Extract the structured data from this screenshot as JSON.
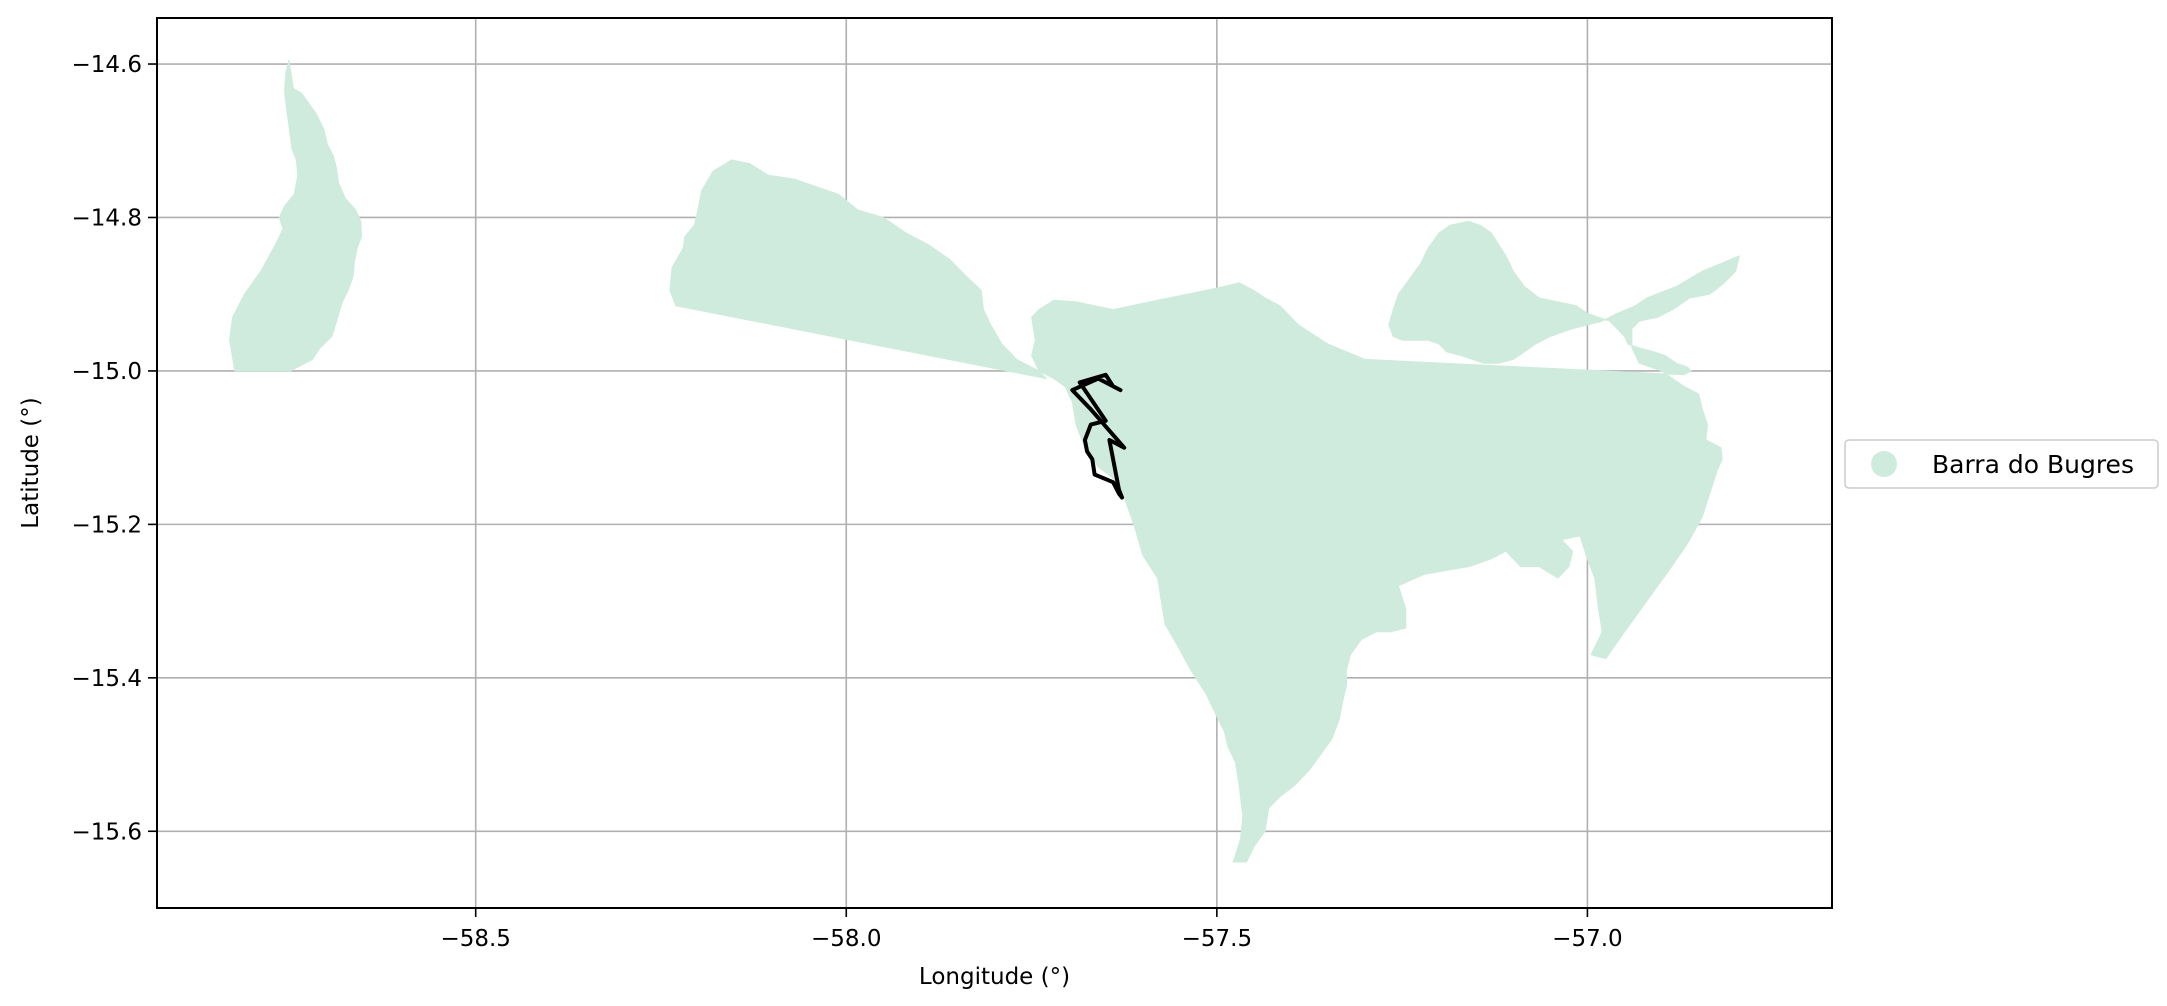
{
  "colors": {
    "region_fill": "#cfebdd",
    "outline_stroke": "#000000",
    "grid": "#b0b0b0",
    "axes": "#000000",
    "legend_border": "#cccccc"
  },
  "map": {
    "xlabel": "Longitude (°)",
    "ylabel": "Latitude (°)",
    "xlim": [
      -58.93,
      -56.67
    ],
    "ylim": [
      -15.7,
      -14.54
    ],
    "x_ticks": [
      -58.5,
      -58.0,
      -57.5,
      -57.0
    ],
    "x_tick_labels": [
      "−58.5",
      "−58.0",
      "−57.5",
      "−57.0"
    ],
    "y_ticks": [
      -14.6,
      -14.8,
      -15.0,
      -15.2,
      -15.4,
      -15.6
    ],
    "y_tick_labels": [
      "−14.6",
      "−14.8",
      "−15.0",
      "−15.2",
      "−15.4",
      "−15.6"
    ],
    "grid": true,
    "legend": {
      "placement": "outside-right",
      "entries": [
        {
          "label": "Barra do Bugres",
          "marker": "circle",
          "color": "#cfebdd"
        }
      ]
    },
    "layers": [
      {
        "name": "Barra do Bugres",
        "type": "polygon",
        "style": "filled",
        "parts": [
          [
            [
              -58.825,
              -15.0
            ],
            [
              -58.832,
              -14.96
            ],
            [
              -58.828,
              -14.93
            ],
            [
              -58.812,
              -14.9
            ],
            [
              -58.79,
              -14.87
            ],
            [
              -58.77,
              -14.835
            ],
            [
              -58.76,
              -14.815
            ],
            [
              -58.765,
              -14.8
            ],
            [
              -58.758,
              -14.785
            ],
            [
              -58.745,
              -14.77
            ],
            [
              -58.74,
              -14.745
            ],
            [
              -58.742,
              -14.725
            ],
            [
              -58.748,
              -14.71
            ],
            [
              -58.752,
              -14.68
            ],
            [
              -58.755,
              -14.66
            ],
            [
              -58.758,
              -14.635
            ],
            [
              -58.756,
              -14.61
            ],
            [
              -58.752,
              -14.595
            ],
            [
              -58.746,
              -14.632
            ],
            [
              -58.735,
              -14.638
            ],
            [
              -58.715,
              -14.665
            ],
            [
              -58.705,
              -14.685
            ],
            [
              -58.7,
              -14.705
            ],
            [
              -58.692,
              -14.72
            ],
            [
              -58.688,
              -14.735
            ],
            [
              -58.685,
              -14.755
            ],
            [
              -58.676,
              -14.775
            ],
            [
              -58.662,
              -14.79
            ],
            [
              -58.655,
              -14.805
            ],
            [
              -58.654,
              -14.825
            ],
            [
              -58.66,
              -14.84
            ],
            [
              -58.664,
              -14.86
            ],
            [
              -58.665,
              -14.875
            ],
            [
              -58.672,
              -14.895
            ],
            [
              -58.68,
              -14.91
            ],
            [
              -58.686,
              -14.93
            ],
            [
              -58.694,
              -14.955
            ],
            [
              -58.71,
              -14.97
            ],
            [
              -58.72,
              -14.985
            ],
            [
              -58.74,
              -14.995
            ],
            [
              -58.75,
              -15.0
            ]
          ],
          [
            [
              -58.23,
              -14.915
            ],
            [
              -58.238,
              -14.895
            ],
            [
              -58.235,
              -14.865
            ],
            [
              -58.22,
              -14.84
            ],
            [
              -58.218,
              -14.825
            ],
            [
              -58.205,
              -14.81
            ],
            [
              -58.2,
              -14.79
            ],
            [
              -58.195,
              -14.765
            ],
            [
              -58.18,
              -14.74
            ],
            [
              -58.155,
              -14.725
            ],
            [
              -58.13,
              -14.73
            ],
            [
              -58.105,
              -14.745
            ],
            [
              -58.07,
              -14.75
            ],
            [
              -58.04,
              -14.76
            ],
            [
              -58.01,
              -14.77
            ],
            [
              -57.985,
              -14.79
            ],
            [
              -57.95,
              -14.8
            ],
            [
              -57.92,
              -14.82
            ],
            [
              -57.89,
              -14.835
            ],
            [
              -57.86,
              -14.855
            ],
            [
              -57.84,
              -14.875
            ],
            [
              -57.818,
              -14.895
            ],
            [
              -57.815,
              -14.92
            ],
            [
              -57.805,
              -14.94
            ],
            [
              -57.79,
              -14.965
            ],
            [
              -57.77,
              -14.985
            ],
            [
              -57.74,
              -15.0
            ],
            [
              -57.72,
              -15.01
            ],
            [
              -57.705,
              -15.02
            ],
            [
              -57.695,
              -15.04
            ],
            [
              -57.69,
              -15.07
            ],
            [
              -57.678,
              -15.1
            ],
            [
              -57.66,
              -15.125
            ],
            [
              -57.64,
              -15.14
            ],
            [
              -57.625,
              -15.165
            ],
            [
              -57.612,
              -15.2
            ],
            [
              -57.6,
              -15.24
            ],
            [
              -57.58,
              -15.27
            ],
            [
              -57.575,
              -15.3
            ],
            [
              -57.57,
              -15.33
            ],
            [
              -57.552,
              -15.36
            ],
            [
              -57.535,
              -15.39
            ],
            [
              -57.515,
              -15.42
            ],
            [
              -57.505,
              -15.44
            ],
            [
              -57.49,
              -15.47
            ],
            [
              -57.485,
              -15.49
            ],
            [
              -57.475,
              -15.51
            ],
            [
              -57.47,
              -15.54
            ],
            [
              -57.465,
              -15.58
            ],
            [
              -57.468,
              -15.61
            ],
            [
              -57.478,
              -15.64
            ],
            [
              -57.46,
              -15.64
            ],
            [
              -57.45,
              -15.62
            ],
            [
              -57.435,
              -15.6
            ],
            [
              -57.43,
              -15.57
            ],
            [
              -57.415,
              -15.555
            ],
            [
              -57.395,
              -15.54
            ],
            [
              -57.375,
              -15.52
            ],
            [
              -57.36,
              -15.5
            ],
            [
              -57.345,
              -15.48
            ],
            [
              -57.335,
              -15.455
            ],
            [
              -57.33,
              -15.43
            ],
            [
              -57.325,
              -15.41
            ],
            [
              -57.325,
              -15.39
            ],
            [
              -57.32,
              -15.37
            ],
            [
              -57.305,
              -15.35
            ],
            [
              -57.285,
              -15.34
            ],
            [
              -57.265,
              -15.34
            ],
            [
              -57.245,
              -15.335
            ],
            [
              -57.245,
              -15.31
            ],
            [
              -57.255,
              -15.28
            ],
            [
              -57.22,
              -15.265
            ],
            [
              -57.19,
              -15.26
            ],
            [
              -57.16,
              -15.255
            ],
            [
              -57.13,
              -15.245
            ],
            [
              -57.11,
              -15.235
            ],
            [
              -57.09,
              -15.255
            ],
            [
              -57.065,
              -15.255
            ],
            [
              -57.04,
              -15.27
            ],
            [
              -57.025,
              -15.255
            ],
            [
              -57.02,
              -15.235
            ],
            [
              -57.035,
              -15.22
            ],
            [
              -57.01,
              -15.215
            ],
            [
              -57.0,
              -15.245
            ],
            [
              -56.99,
              -15.27
            ],
            [
              -56.985,
              -15.31
            ],
            [
              -56.98,
              -15.34
            ],
            [
              -56.995,
              -15.37
            ],
            [
              -56.975,
              -15.375
            ],
            [
              -56.95,
              -15.34
            ],
            [
              -56.92,
              -15.3
            ],
            [
              -56.89,
              -15.26
            ],
            [
              -56.865,
              -15.225
            ],
            [
              -56.845,
              -15.19
            ],
            [
              -56.835,
              -15.16
            ],
            [
              -56.825,
              -15.13
            ],
            [
              -56.818,
              -15.115
            ],
            [
              -56.82,
              -15.1
            ],
            [
              -56.84,
              -15.09
            ],
            [
              -56.838,
              -15.07
            ],
            [
              -56.845,
              -15.05
            ],
            [
              -56.85,
              -15.03
            ],
            [
              -56.87,
              -15.02
            ],
            [
              -56.9,
              -15.0
            ],
            [
              -56.93,
              -14.99
            ],
            [
              -56.94,
              -14.97
            ],
            [
              -56.94,
              -14.945
            ],
            [
              -56.93,
              -14.935
            ],
            [
              -56.905,
              -14.93
            ],
            [
              -56.885,
              -14.92
            ],
            [
              -56.862,
              -14.905
            ],
            [
              -56.835,
              -14.9
            ],
            [
              -56.815,
              -14.885
            ],
            [
              -56.8,
              -14.87
            ],
            [
              -56.795,
              -14.85
            ],
            [
              -56.845,
              -14.87
            ],
            [
              -56.88,
              -14.89
            ],
            [
              -56.92,
              -14.905
            ],
            [
              -56.935,
              -14.915
            ],
            [
              -56.96,
              -14.925
            ],
            [
              -56.98,
              -14.935
            ],
            [
              -57.0,
              -14.94
            ],
            [
              -57.02,
              -14.945
            ],
            [
              -57.05,
              -14.955
            ],
            [
              -57.07,
              -14.965
            ],
            [
              -57.085,
              -14.975
            ],
            [
              -57.1,
              -14.985
            ],
            [
              -57.12,
              -14.99
            ],
            [
              -57.14,
              -14.99
            ],
            [
              -57.155,
              -14.985
            ],
            [
              -57.17,
              -14.98
            ],
            [
              -57.19,
              -14.975
            ],
            [
              -57.2,
              -14.965
            ],
            [
              -57.215,
              -14.96
            ],
            [
              -57.23,
              -14.96
            ],
            [
              -57.25,
              -14.96
            ],
            [
              -57.262,
              -14.955
            ],
            [
              -57.268,
              -14.94
            ],
            [
              -57.262,
              -14.92
            ],
            [
              -57.255,
              -14.9
            ],
            [
              -57.24,
              -14.88
            ],
            [
              -57.225,
              -14.86
            ],
            [
              -57.215,
              -14.84
            ],
            [
              -57.2,
              -14.82
            ],
            [
              -57.185,
              -14.81
            ],
            [
              -57.16,
              -14.805
            ],
            [
              -57.145,
              -14.81
            ],
            [
              -57.13,
              -14.82
            ],
            [
              -57.12,
              -14.835
            ],
            [
              -57.11,
              -14.85
            ],
            [
              -57.1,
              -14.87
            ],
            [
              -57.085,
              -14.89
            ],
            [
              -57.065,
              -14.905
            ],
            [
              -57.04,
              -14.91
            ],
            [
              -57.015,
              -14.915
            ],
            [
              -57.0,
              -14.925
            ],
            [
              -56.985,
              -14.93
            ],
            [
              -56.97,
              -14.935
            ],
            [
              -56.96,
              -14.945
            ],
            [
              -56.95,
              -14.955
            ],
            [
              -56.945,
              -14.965
            ],
            [
              -56.93,
              -14.97
            ],
            [
              -56.91,
              -14.975
            ],
            [
              -56.895,
              -14.98
            ],
            [
              -56.88,
              -14.99
            ],
            [
              -56.865,
              -14.995
            ],
            [
              -56.86,
              -15.0
            ],
            [
              -56.87,
              -15.005
            ],
            [
              -57.3,
              -14.985
            ],
            [
              -57.35,
              -14.965
            ],
            [
              -57.39,
              -14.94
            ],
            [
              -57.415,
              -14.915
            ],
            [
              -57.435,
              -14.905
            ],
            [
              -57.45,
              -14.895
            ],
            [
              -57.47,
              -14.885
            ],
            [
              -57.49,
              -14.89
            ],
            [
              -57.515,
              -14.895
            ],
            [
              -57.54,
              -14.9
            ],
            [
              -57.565,
              -14.905
            ],
            [
              -57.59,
              -14.91
            ],
            [
              -57.615,
              -14.915
            ],
            [
              -57.64,
              -14.92
            ],
            [
              -57.665,
              -14.915
            ],
            [
              -57.69,
              -14.91
            ],
            [
              -57.72,
              -14.908
            ],
            [
              -57.74,
              -14.92
            ],
            [
              -57.75,
              -14.93
            ],
            [
              -57.745,
              -14.96
            ],
            [
              -57.75,
              -14.98
            ],
            [
              -57.74,
              -15.0
            ],
            [
              -57.73,
              -15.01
            ]
          ]
        ]
      },
      {
        "name": "Barra do Bugres outline",
        "type": "polyline",
        "style": "outline",
        "parts": [
          [
            [
              -57.628,
              -15.165
            ],
            [
              -57.632,
              -15.16
            ],
            [
              -57.64,
              -15.145
            ],
            [
              -57.665,
              -15.135
            ],
            [
              -57.668,
              -15.115
            ],
            [
              -57.675,
              -15.105
            ],
            [
              -57.678,
              -15.09
            ],
            [
              -57.67,
              -15.07
            ],
            [
              -57.65,
              -15.065
            ],
            [
              -57.685,
              -15.015
            ],
            [
              -57.65,
              -15.005
            ],
            [
              -57.64,
              -15.02
            ],
            [
              -57.63,
              -15.025
            ],
            [
              -57.66,
              -15.01
            ],
            [
              -57.695,
              -15.025
            ],
            [
              -57.67,
              -15.05
            ],
            [
              -57.625,
              -15.1
            ],
            [
              -57.645,
              -15.09
            ],
            [
              -57.632,
              -15.155
            ],
            [
              -57.628,
              -15.165
            ]
          ]
        ]
      }
    ]
  }
}
